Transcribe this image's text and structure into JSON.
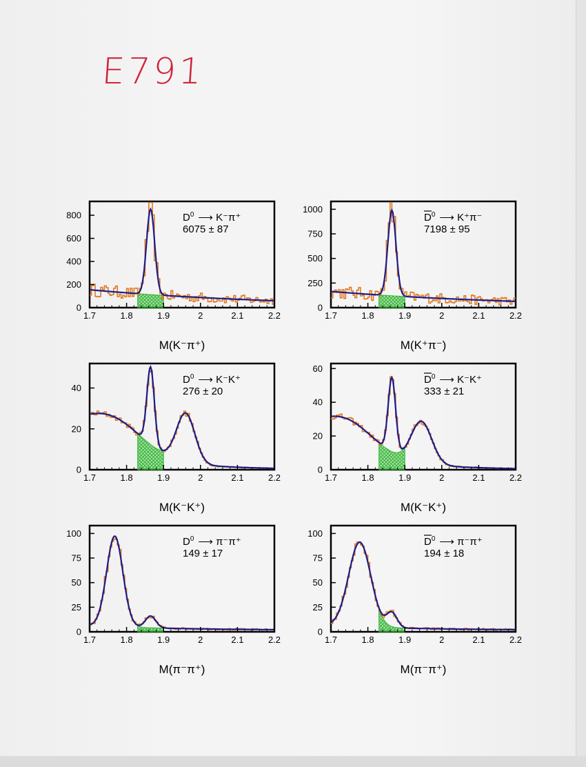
{
  "page": {
    "handwritten_note": "E791",
    "colors": {
      "histogram": "#e07a1f",
      "fit_curve": "#1c1c8a",
      "background_hatch": "#2fb52f",
      "note": "#d0253a"
    }
  },
  "chart_data": [
    {
      "type": "line",
      "panel": "top-left",
      "decay_prefix": "D",
      "decay_bar": false,
      "decay_products": "K⁻π⁺",
      "yield": "6075 ± 87",
      "xlabel": "M(K⁻π⁺)",
      "xlim": [
        1.7,
        2.2
      ],
      "ylim": [
        0,
        920
      ],
      "x_ticks": [
        "1.7",
        "1.8",
        "1.9",
        "2",
        "2.1",
        "2.2"
      ],
      "y_ticks": [
        "0",
        "200",
        "400",
        "600",
        "800"
      ],
      "y_tick_values": [
        0,
        200,
        400,
        600,
        800
      ],
      "series": [
        {
          "kind": "fit",
          "baseline": [
            155,
            -250
          ],
          "baseline_exp": false,
          "peaks": [
            {
              "mu": 1.865,
              "sigma": 0.011,
              "amp": 740
            }
          ]
        },
        {
          "kind": "signal_region_background",
          "range": [
            1.83,
            1.9
          ]
        }
      ]
    },
    {
      "type": "line",
      "panel": "top-right",
      "decay_prefix": "D",
      "decay_bar": true,
      "decay_products": "K⁺π⁻",
      "yield": "7198 ± 95",
      "xlabel": "M(K⁺π⁻)",
      "xlim": [
        1.7,
        2.2
      ],
      "ylim": [
        0,
        1080
      ],
      "x_ticks": [
        "1.7",
        "1.8",
        "1.9",
        "2",
        "2.1",
        "2.2"
      ],
      "y_ticks": [
        "0",
        "250",
        "500",
        "750",
        "1000"
      ],
      "y_tick_values": [
        0,
        250,
        500,
        750,
        1000
      ],
      "series": [
        {
          "kind": "fit",
          "baseline": [
            165,
            -270
          ],
          "baseline_exp": false,
          "peaks": [
            {
              "mu": 1.865,
              "sigma": 0.011,
              "amp": 870
            }
          ]
        },
        {
          "kind": "signal_region_background",
          "range": [
            1.83,
            1.9
          ]
        }
      ]
    },
    {
      "type": "line",
      "panel": "middle-left",
      "decay_prefix": "D",
      "decay_bar": false,
      "decay_products": "K⁻K⁺",
      "yield": "276 ± 20",
      "xlabel": "M(K⁻K⁺)",
      "xlim": [
        1.7,
        2.2
      ],
      "ylim": [
        0,
        52
      ],
      "x_ticks": [
        "1.7",
        "1.8",
        "1.9",
        "2",
        "2.1",
        "2.2"
      ],
      "y_ticks": [
        "0",
        "20",
        "40"
      ],
      "y_tick_values": [
        0,
        20,
        40
      ],
      "series": [
        {
          "kind": "fit",
          "broad": {
            "mu": 1.755,
            "sigma": 0.085,
            "amp": 17
          },
          "peaks": [
            {
              "mu": 1.865,
              "sigma": 0.01,
              "amp": 38
            },
            {
              "mu": 1.96,
              "sigma": 0.025,
              "amp": 24
            }
          ]
        },
        {
          "kind": "signal_region_background",
          "range": [
            1.83,
            1.9
          ]
        }
      ]
    },
    {
      "type": "line",
      "panel": "middle-right",
      "decay_prefix": "D",
      "decay_bar": true,
      "decay_products": "K⁻K⁺",
      "yield": "333 ± 21",
      "xlabel": "M(K⁻K⁺)",
      "xlim": [
        1.7,
        2.2
      ],
      "ylim": [
        0,
        63
      ],
      "x_ticks": [
        "1.7",
        "1.8",
        "1.9",
        "2",
        "2.1",
        "2.2"
      ],
      "y_ticks": [
        "0",
        "20",
        "40",
        "60"
      ],
      "y_tick_values": [
        0,
        20,
        40,
        60
      ],
      "series": [
        {
          "kind": "fit",
          "broad": {
            "mu": 1.735,
            "sigma": 0.08,
            "amp": 20
          },
          "peaks": [
            {
              "mu": 1.865,
              "sigma": 0.01,
              "amp": 44
            },
            {
              "mu": 1.945,
              "sigma": 0.028,
              "amp": 25
            }
          ]
        },
        {
          "kind": "signal_region_background",
          "range": [
            1.83,
            1.9
          ]
        }
      ]
    },
    {
      "type": "line",
      "panel": "bottom-left",
      "decay_prefix": "D",
      "decay_bar": false,
      "decay_products": "π⁻π⁺",
      "yield": "149 ± 17",
      "xlabel": "M(π⁻π⁺)",
      "xlim": [
        1.7,
        2.2
      ],
      "ylim": [
        0,
        108
      ],
      "x_ticks": [
        "1.7",
        "1.8",
        "1.9",
        "2",
        "2.1",
        "2.2"
      ],
      "y_ticks": [
        "0",
        "25",
        "50",
        "75",
        "100"
      ],
      "y_tick_values": [
        0,
        25,
        50,
        75,
        100
      ],
      "series": [
        {
          "kind": "fit",
          "broad": {
            "mu": 1.768,
            "sigma": 0.022,
            "amp": 92
          },
          "tail": 5,
          "peaks": [
            {
              "mu": 1.865,
              "sigma": 0.014,
              "amp": 12
            }
          ]
        },
        {
          "kind": "signal_region_background",
          "range": [
            1.83,
            1.9
          ]
        }
      ]
    },
    {
      "type": "line",
      "panel": "bottom-right",
      "decay_prefix": "D",
      "decay_bar": true,
      "decay_products": "π⁻π⁺",
      "yield": "194 ± 18",
      "xlabel": "M(π⁻π⁺)",
      "xlim": [
        1.7,
        2.2
      ],
      "ylim": [
        0,
        108
      ],
      "x_ticks": [
        "1.7",
        "1.8",
        "1.9",
        "2",
        "2.1",
        "2.2"
      ],
      "y_ticks": [
        "0",
        "25",
        "50",
        "75",
        "100"
      ],
      "y_tick_values": [
        0,
        25,
        50,
        75,
        100
      ],
      "series": [
        {
          "kind": "fit",
          "broad": {
            "mu": 1.778,
            "sigma": 0.03,
            "amp": 86
          },
          "tail": 5,
          "peaks": [
            {
              "mu": 1.865,
              "sigma": 0.014,
              "amp": 15
            }
          ]
        },
        {
          "kind": "signal_region_background",
          "range": [
            1.83,
            1.9
          ]
        }
      ]
    }
  ]
}
